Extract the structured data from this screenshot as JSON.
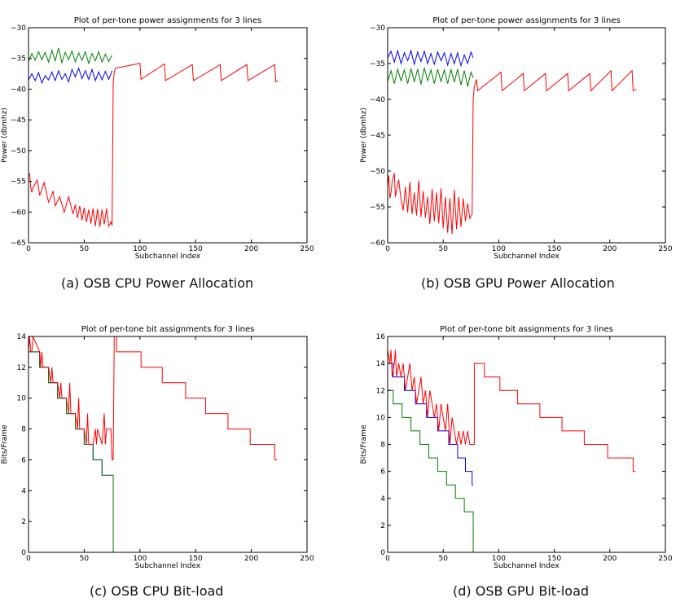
{
  "colors": {
    "red": "#ff0000",
    "green": "#007f00",
    "blue": "#0000ff"
  },
  "panels": [
    {
      "caption": "(a) OSB CPU Power Allocation"
    },
    {
      "caption": "(b) OSB GPU Power Allocation"
    },
    {
      "caption": "(c) OSB CPU Bit-load"
    },
    {
      "caption": "(d) OSB GPU Bit-load"
    }
  ],
  "chart_data": [
    {
      "type": "line",
      "title": "Plot of per-tone power assignments for 3 lines",
      "xlabel": "Subchannel Index",
      "ylabel": "Power (dbmhz)",
      "xlim": [
        0,
        250
      ],
      "ylim": [
        -65,
        -30
      ],
      "xticks": [
        0,
        50,
        100,
        150,
        200,
        250
      ],
      "yticks": [
        -65,
        -60,
        -55,
        -50,
        -45,
        -40,
        -35,
        -30
      ],
      "grid": false,
      "series": [
        {
          "color": "green",
          "x": [
            0,
            3,
            6,
            9,
            12,
            15,
            18,
            21,
            24,
            27,
            30,
            33,
            36,
            39,
            42,
            45,
            48,
            51,
            54,
            57,
            60,
            63,
            66,
            69,
            72,
            75
          ],
          "y": [
            -35.5,
            -34.2,
            -35.3,
            -33.9,
            -35.2,
            -34.0,
            -35.6,
            -33.7,
            -35.4,
            -33.3,
            -35.7,
            -34.0,
            -35.2,
            -33.8,
            -35.6,
            -34.1,
            -35.3,
            -33.9,
            -35.8,
            -34.2,
            -35.4,
            -33.9,
            -35.6,
            -34.3,
            -35.5,
            -34.5
          ]
        },
        {
          "color": "blue",
          "x": [
            0,
            3,
            6,
            9,
            12,
            15,
            18,
            21,
            24,
            27,
            30,
            33,
            36,
            39,
            42,
            45,
            48,
            51,
            54,
            57,
            60,
            63,
            66,
            69,
            72,
            75
          ],
          "y": [
            -38.5,
            -37.5,
            -38.6,
            -37.3,
            -39.0,
            -37.8,
            -38.5,
            -37.2,
            -38.6,
            -37.0,
            -38.4,
            -37.5,
            -38.8,
            -36.8,
            -38.0,
            -36.6,
            -38.3,
            -37.0,
            -38.4,
            -36.8,
            -38.6,
            -37.2,
            -38.5,
            -37.1,
            -38.4,
            -37.0
          ]
        },
        {
          "color": "red",
          "x": [
            0,
            1,
            2,
            3,
            4,
            8,
            10,
            12,
            14,
            18,
            20,
            22,
            24,
            28,
            32,
            34,
            36,
            40,
            42,
            44,
            46,
            48,
            50,
            52,
            54,
            56,
            58,
            60,
            62,
            64,
            66,
            68,
            70,
            72,
            74,
            75,
            76,
            77,
            78,
            100,
            101,
            122,
            123,
            147,
            148,
            172,
            173,
            196,
            197,
            221,
            222,
            224
          ],
          "y": [
            -54,
            -53.8,
            -56,
            -56.8,
            -56,
            -54.8,
            -57.3,
            -56.3,
            -55.2,
            -58.4,
            -57.6,
            -56.6,
            -59.0,
            -57.5,
            -60.0,
            -58.8,
            -57.5,
            -60.3,
            -58.8,
            -61.0,
            -59.0,
            -61.3,
            -59.3,
            -61.6,
            -59.6,
            -61.9,
            -59.4,
            -62.3,
            -59.5,
            -62.4,
            -59.6,
            -62.0,
            -59.4,
            -62.3,
            -61.6,
            -62.2,
            -39.0,
            -37.2,
            -36.6,
            -35.8,
            -38.4,
            -35.9,
            -38.6,
            -36.0,
            -38.6,
            -36.0,
            -38.6,
            -36.0,
            -38.6,
            -36.0,
            -38.8,
            -38.6
          ]
        }
      ]
    },
    {
      "type": "line",
      "title": "Plot of per-tone power assignments for 3 lines",
      "xlabel": "Subchannel Index",
      "ylabel": "Power (dbmhz)",
      "xlim": [
        0,
        250
      ],
      "ylim": [
        -60,
        -30
      ],
      "xticks": [
        0,
        50,
        100,
        150,
        200,
        250
      ],
      "yticks": [
        -60,
        -55,
        -50,
        -45,
        -40,
        -35,
        -30
      ],
      "grid": false,
      "series": [
        {
          "color": "blue",
          "x": [
            0,
            3,
            6,
            9,
            12,
            15,
            18,
            21,
            24,
            27,
            30,
            33,
            36,
            39,
            42,
            45,
            48,
            51,
            54,
            57,
            60,
            63,
            66,
            69,
            72,
            75,
            77
          ],
          "y": [
            -34.2,
            -33.3,
            -34.8,
            -33.2,
            -35.0,
            -33.5,
            -34.6,
            -33.2,
            -35.1,
            -33.4,
            -34.7,
            -33.3,
            -35.0,
            -33.6,
            -35.1,
            -33.4,
            -34.6,
            -33.5,
            -35.2,
            -33.6,
            -35.0,
            -33.5,
            -35.3,
            -33.8,
            -35.0,
            -33.4,
            -34.2
          ]
        },
        {
          "color": "green",
          "x": [
            0,
            3,
            6,
            9,
            12,
            15,
            18,
            21,
            24,
            27,
            30,
            33,
            36,
            39,
            42,
            45,
            48,
            51,
            54,
            57,
            60,
            63,
            66,
            69,
            72,
            75,
            77
          ],
          "y": [
            -37.5,
            -36.0,
            -37.8,
            -35.8,
            -37.4,
            -35.9,
            -37.8,
            -35.7,
            -37.5,
            -35.8,
            -37.9,
            -35.6,
            -37.4,
            -35.9,
            -37.8,
            -35.8,
            -37.5,
            -35.9,
            -37.8,
            -35.8,
            -37.6,
            -35.8,
            -38.0,
            -36.0,
            -38.2,
            -36.2,
            -37.0
          ]
        },
        {
          "color": "red",
          "x": [
            0,
            1,
            2,
            3,
            4,
            6,
            7,
            8,
            10,
            12,
            14,
            16,
            18,
            20,
            22,
            24,
            26,
            28,
            30,
            32,
            34,
            36,
            38,
            40,
            42,
            44,
            46,
            48,
            50,
            52,
            54,
            56,
            58,
            60,
            62,
            64,
            66,
            68,
            70,
            72,
            74,
            76,
            77,
            78,
            80,
            81,
            102,
            103,
            122,
            123,
            142,
            143,
            162,
            163,
            182,
            183,
            201,
            202,
            220,
            221,
            224
          ],
          "y": [
            -52,
            -50.6,
            -53.8,
            -53.0,
            -51.5,
            -50.3,
            -53.6,
            -52.6,
            -51.2,
            -54.0,
            -55.5,
            -52.2,
            -55.8,
            -51.5,
            -56.0,
            -53.0,
            -56.2,
            -51.3,
            -56.4,
            -52.8,
            -56.5,
            -53.6,
            -57.4,
            -52.5,
            -57.0,
            -53.0,
            -57.3,
            -52.4,
            -58.0,
            -53.6,
            -58.6,
            -53.8,
            -58.8,
            -52.6,
            -58.1,
            -53.6,
            -57.8,
            -53.8,
            -57.0,
            -54.5,
            -56.6,
            -56.0,
            -40.0,
            -38.2,
            -37.2,
            -38.8,
            -36.2,
            -38.8,
            -36.4,
            -38.8,
            -36.4,
            -38.8,
            -36.4,
            -38.8,
            -36.4,
            -38.8,
            -36.0,
            -38.8,
            -36.0,
            -38.8,
            -38.6
          ]
        }
      ]
    },
    {
      "type": "line",
      "title": "Plot of per-tone bit assignments for 3 lines",
      "xlabel": "Subchannel Index",
      "ylabel": "Bits/Frame",
      "xlim": [
        0,
        250
      ],
      "ylim": [
        0,
        14
      ],
      "xticks": [
        0,
        50,
        100,
        150,
        200,
        250
      ],
      "yticks": [
        0,
        2,
        4,
        6,
        8,
        10,
        12,
        14
      ],
      "grid": false,
      "series": [
        {
          "color": "blue",
          "x": [
            0,
            10,
            10,
            18,
            18,
            26,
            26,
            34,
            34,
            42,
            42,
            50,
            50,
            58,
            58,
            66,
            66,
            76,
            76,
            77
          ],
          "y": [
            13,
            13,
            12,
            12,
            11,
            11,
            10,
            10,
            9,
            9,
            8,
            8,
            7,
            7,
            6,
            6,
            5,
            5,
            0,
            0
          ]
        },
        {
          "color": "green",
          "x": [
            0,
            10,
            10,
            18,
            18,
            26,
            26,
            34,
            34,
            42,
            42,
            50,
            50,
            58,
            58,
            66,
            66,
            76,
            76,
            77
          ],
          "y": [
            13,
            13,
            12,
            12,
            11,
            11,
            10,
            10,
            9,
            9,
            8,
            8,
            7,
            7,
            6,
            6,
            5,
            5,
            0,
            0
          ]
        },
        {
          "color": "red",
          "x": [
            0,
            1,
            2,
            3,
            4,
            10,
            11,
            12,
            13,
            18,
            20,
            21,
            22,
            26,
            28,
            29,
            30,
            34,
            36,
            37,
            38,
            42,
            44,
            45,
            46,
            50,
            52,
            53,
            54,
            58,
            60,
            61,
            62,
            66,
            68,
            69,
            70,
            74,
            75,
            76,
            77,
            79,
            79,
            83,
            83,
            101,
            101,
            120,
            120,
            141,
            141,
            159,
            159,
            179,
            179,
            199,
            199,
            221,
            221,
            223
          ],
          "y": [
            13,
            14,
            13,
            13,
            14,
            13,
            12,
            13,
            12,
            12,
            11,
            12,
            11,
            11,
            10,
            11,
            10,
            10,
            9,
            11,
            9,
            9,
            8,
            10,
            8,
            8,
            7,
            9,
            7,
            7,
            8,
            7,
            8,
            7,
            9,
            7,
            8,
            8,
            6,
            6,
            14,
            14,
            13,
            13,
            13,
            13,
            12,
            12,
            11,
            11,
            10,
            10,
            9,
            9,
            8,
            8,
            7,
            7,
            6,
            6
          ]
        }
      ]
    },
    {
      "type": "line",
      "title": "Plot of per-tone bit assignments for 3 lines",
      "xlabel": "Subchannel Index",
      "ylabel": "Bits/Frame",
      "xlim": [
        0,
        250
      ],
      "ylim": [
        0,
        16
      ],
      "xticks": [
        0,
        50,
        100,
        150,
        200,
        250
      ],
      "yticks": [
        0,
        2,
        4,
        6,
        8,
        10,
        12,
        14,
        16
      ],
      "grid": false,
      "series": [
        {
          "color": "blue",
          "x": [
            0,
            5,
            5,
            15,
            15,
            25,
            25,
            35,
            35,
            45,
            45,
            55,
            55,
            63,
            63,
            70,
            70,
            76,
            76,
            77
          ],
          "y": [
            14,
            14,
            13,
            13,
            12,
            12,
            11,
            11,
            10,
            10,
            9,
            9,
            8,
            8,
            7,
            7,
            6,
            6,
            5,
            5
          ]
        },
        {
          "color": "green",
          "x": [
            0,
            5,
            5,
            13,
            13,
            21,
            21,
            29,
            29,
            37,
            37,
            45,
            45,
            53,
            53,
            61,
            61,
            69,
            69,
            75,
            75,
            77,
            77,
            78
          ],
          "y": [
            12,
            12,
            11,
            11,
            10,
            10,
            9,
            9,
            8,
            8,
            7,
            7,
            6,
            6,
            5,
            5,
            4,
            4,
            3,
            3,
            3,
            3,
            0,
            0
          ]
        },
        {
          "color": "red",
          "x": [
            0,
            2,
            3,
            4,
            6,
            7,
            8,
            10,
            12,
            14,
            16,
            18,
            20,
            22,
            24,
            26,
            28,
            30,
            32,
            34,
            36,
            38,
            40,
            42,
            44,
            46,
            48,
            50,
            52,
            54,
            56,
            58,
            60,
            62,
            64,
            66,
            68,
            70,
            72,
            74,
            76,
            77,
            78,
            78,
            87,
            87,
            101,
            101,
            117,
            117,
            137,
            137,
            157,
            157,
            177,
            177,
            198,
            198,
            221,
            221,
            223
          ],
          "y": [
            15,
            14,
            15,
            13,
            14,
            15,
            13,
            14,
            13,
            14,
            12,
            13,
            14,
            12,
            13,
            11,
            12,
            13,
            11,
            12,
            10,
            12,
            11,
            10,
            11,
            9,
            11,
            10,
            9,
            11,
            8,
            10,
            9,
            8,
            9,
            8,
            9,
            8,
            9,
            8,
            8,
            8,
            8,
            14,
            14,
            13,
            13,
            12,
            12,
            11,
            11,
            10,
            10,
            9,
            9,
            8,
            8,
            7,
            7,
            6,
            6
          ]
        }
      ]
    }
  ]
}
